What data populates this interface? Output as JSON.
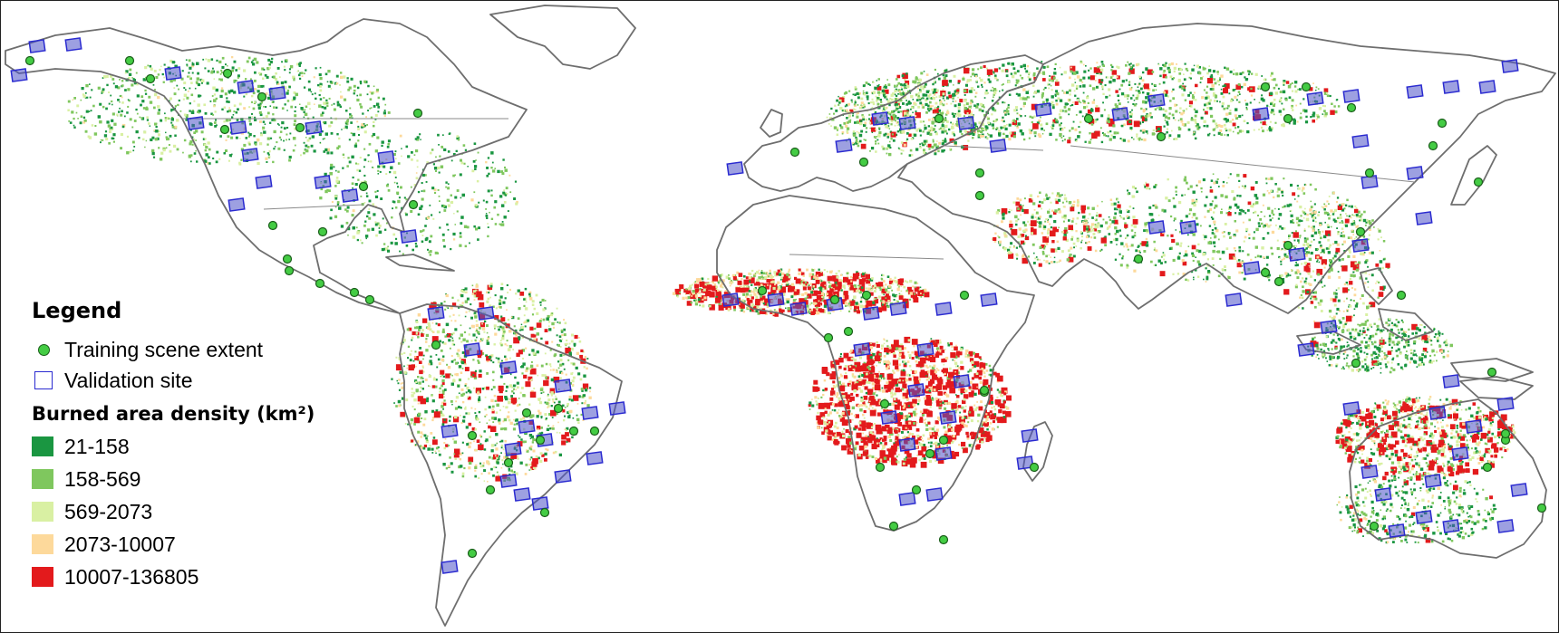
{
  "legend": {
    "title": "Legend",
    "training": "Training scene extent",
    "validation": "Validation site",
    "density_title": "Burned area density (km²)",
    "classes": [
      {
        "label": "21-158",
        "color": "#1a9641"
      },
      {
        "label": "158-569",
        "color": "#7fc75e"
      },
      {
        "label": "569-2073",
        "color": "#d9f0a3"
      },
      {
        "label": "2073-10007",
        "color": "#fdd99b"
      },
      {
        "label": "10007-136805",
        "color": "#e31a1c"
      }
    ]
  },
  "colors": {
    "coastline": "#6e6e6e",
    "training_marker_fill": "#44cc44",
    "training_marker_stroke": "#1a5e1a",
    "validation_marker": "#2a2ad0"
  }
}
